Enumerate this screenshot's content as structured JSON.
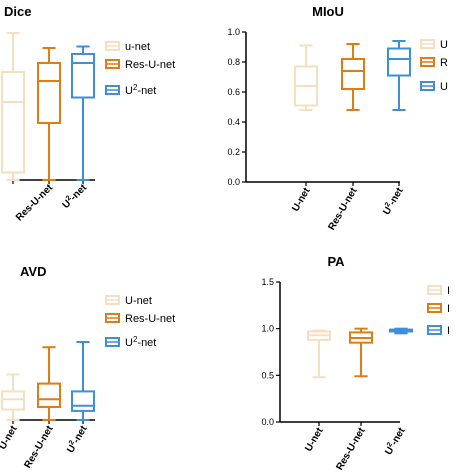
{
  "colors": {
    "unet": "#f6dfbf",
    "resunet": "#e07d12",
    "u2net": "#3d8fdb",
    "axis": "#000000"
  },
  "chart_data": [
    {
      "type": "box",
      "title": "Dice",
      "categories": [
        "u-net",
        "Res-U-net",
        "U2-net"
      ],
      "category_labels": [
        "",
        "Res-U-net",
        "U2-net"
      ],
      "ylim": [
        0,
        1
      ],
      "yticks": [],
      "legend": [
        "u-net",
        "Res-U-net",
        "U2-net"
      ],
      "series": [
        {
          "name": "u-net",
          "min": 0.0,
          "q1": 0.05,
          "median": 0.52,
          "q3": 0.72,
          "max": 0.98
        },
        {
          "name": "Res-U-net",
          "min": 0.0,
          "q1": 0.38,
          "median": 0.66,
          "q3": 0.78,
          "max": 0.88
        },
        {
          "name": "U2-net",
          "min": 0.0,
          "q1": 0.55,
          "median": 0.78,
          "q3": 0.84,
          "max": 0.89
        }
      ]
    },
    {
      "type": "box",
      "title": "MIoU",
      "categories": [
        "U-net",
        "Res-U-net",
        "U2-net"
      ],
      "category_labels": [
        "U-net",
        "Res-U-net",
        "U2-net"
      ],
      "ylim": [
        0,
        1
      ],
      "yticks": [
        "0.0",
        "0.2",
        "0.4",
        "0.6",
        "0.8",
        "1.0"
      ],
      "legend": [
        "U",
        "R",
        "U"
      ],
      "series": [
        {
          "name": "U-net",
          "min": 0.48,
          "q1": 0.51,
          "median": 0.64,
          "q3": 0.77,
          "max": 0.91
        },
        {
          "name": "Res-U-net",
          "min": 0.48,
          "q1": 0.62,
          "median": 0.74,
          "q3": 0.82,
          "max": 0.92
        },
        {
          "name": "U2-net",
          "min": 0.48,
          "q1": 0.71,
          "median": 0.82,
          "q3": 0.89,
          "max": 0.94
        }
      ]
    },
    {
      "type": "box",
      "title": "AVD",
      "categories": [
        "U-net",
        "Res-U-net",
        "U2-net"
      ],
      "category_labels": [
        "U-net",
        "Res-U-net",
        "U2-net"
      ],
      "ylim": [
        0,
        1
      ],
      "yticks": [],
      "legend": [
        "U-net",
        "Res-U-net",
        "U2-net"
      ],
      "series": [
        {
          "name": "U-net",
          "min": 0.0,
          "q1": 0.08,
          "median": 0.16,
          "q3": 0.22,
          "max": 0.35
        },
        {
          "name": "Res-U-net",
          "min": 0.0,
          "q1": 0.1,
          "median": 0.16,
          "q3": 0.28,
          "max": 0.56
        },
        {
          "name": "U2-net",
          "min": 0.0,
          "q1": 0.07,
          "median": 0.11,
          "q3": 0.22,
          "max": 0.6
        }
      ]
    },
    {
      "type": "box",
      "title": "PA",
      "categories": [
        "U-net",
        "Res-U-net",
        "U2-net"
      ],
      "category_labels": [
        "U-net",
        "Res-U-net",
        "U2-net"
      ],
      "ylim": [
        0,
        1.5
      ],
      "yticks": [
        "0.0",
        "0.5",
        "1.0",
        "1.5"
      ],
      "legend": [
        "I",
        "I",
        "I"
      ],
      "series": [
        {
          "name": "U-net",
          "min": 0.48,
          "q1": 0.88,
          "median": 0.93,
          "q3": 0.97,
          "max": 0.98
        },
        {
          "name": "Res-U-net",
          "min": 0.49,
          "q1": 0.85,
          "median": 0.9,
          "q3": 0.96,
          "max": 1.0
        },
        {
          "name": "U2-net",
          "min": 0.95,
          "q1": 0.97,
          "median": 0.98,
          "q3": 0.99,
          "max": 1.0
        }
      ]
    }
  ]
}
